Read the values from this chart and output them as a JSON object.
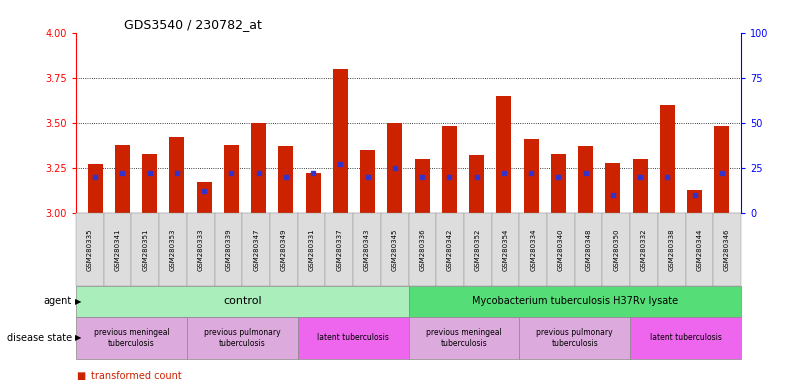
{
  "title": "GDS3540 / 230782_at",
  "samples": [
    "GSM280335",
    "GSM280341",
    "GSM280351",
    "GSM280353",
    "GSM280333",
    "GSM280339",
    "GSM280347",
    "GSM280349",
    "GSM280331",
    "GSM280337",
    "GSM280343",
    "GSM280345",
    "GSM280336",
    "GSM280342",
    "GSM280352",
    "GSM280354",
    "GSM280334",
    "GSM280340",
    "GSM280348",
    "GSM280350",
    "GSM280332",
    "GSM280338",
    "GSM280344",
    "GSM280346"
  ],
  "transformed_count": [
    3.27,
    3.38,
    3.33,
    3.42,
    3.17,
    3.38,
    3.5,
    3.37,
    3.22,
    3.8,
    3.35,
    3.5,
    3.3,
    3.48,
    3.32,
    3.65,
    3.41,
    3.33,
    3.37,
    3.28,
    3.3,
    3.6,
    3.13,
    3.48
  ],
  "percentile_rank": [
    20,
    22,
    22,
    22,
    12,
    22,
    22,
    20,
    22,
    27,
    20,
    25,
    20,
    20,
    20,
    22,
    22,
    20,
    22,
    10,
    20,
    20,
    10,
    22
  ],
  "ylim_left": [
    3.0,
    4.0
  ],
  "ylim_right": [
    0,
    100
  ],
  "yticks_left": [
    3.0,
    3.25,
    3.5,
    3.75,
    4.0
  ],
  "yticks_right": [
    0,
    25,
    50,
    75,
    100
  ],
  "bar_color": "#cc2200",
  "dot_color": "#3333cc",
  "agent_control_label": "control",
  "agent_treatment_label": "Mycobacterium tuberculosis H37Rv lysate",
  "agent_control_color": "#aaeebb",
  "agent_treatment_color": "#55dd77",
  "disease_meningeal_color": "#ddaadd",
  "disease_pulmonary_color": "#ddaadd",
  "disease_latent_color": "#ee66ee",
  "sample_bg_color": "#dddddd",
  "disease_blocks": [
    {
      "start": 0,
      "end": 3,
      "label": "previous meningeal\ntuberculosis",
      "color": "#ddaadd"
    },
    {
      "start": 4,
      "end": 7,
      "label": "previous pulmonary\ntuberculosis",
      "color": "#ddaadd"
    },
    {
      "start": 8,
      "end": 11,
      "label": "latent tuberculosis",
      "color": "#ee66ee"
    },
    {
      "start": 12,
      "end": 15,
      "label": "previous meningeal\ntuberculosis",
      "color": "#ddaadd"
    },
    {
      "start": 16,
      "end": 19,
      "label": "previous pulmonary\ntuberculosis",
      "color": "#ddaadd"
    },
    {
      "start": 20,
      "end": 23,
      "label": "latent tuberculosis",
      "color": "#ee66ee"
    }
  ]
}
